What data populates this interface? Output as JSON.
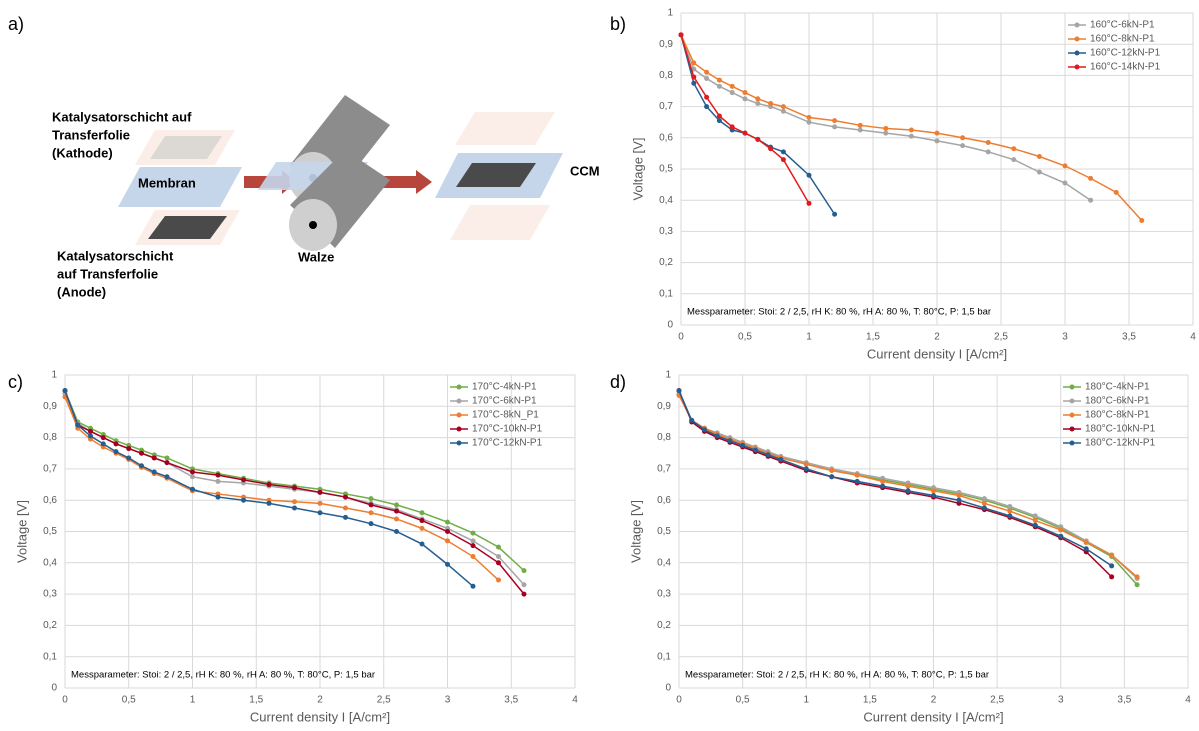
{
  "diagram": {
    "panel_label": "a)",
    "cathode_label": [
      "Katalysatorschicht auf",
      "Transferfolie",
      "(Kathode)"
    ],
    "membrane_label": "Membran",
    "roller_label": "Walze",
    "ccm_label": "CCM",
    "anode_label": [
      "Katalysatorschicht",
      "auf Transferfolie",
      "(Anode)"
    ]
  },
  "chart_data": [
    {
      "type": "line",
      "panel_label": "b)",
      "x_label": "Current density I  [A/cm²]",
      "y_label": "Voltage [V]",
      "annotation": "Messparameter: Stoi: 2 / 2,5, rH K: 80 %, rH A: 80 %, T: 80°C, P: 1,5 bar",
      "xlim": [
        0,
        4
      ],
      "ylim": [
        0,
        1
      ],
      "grid": true,
      "legend": "top-right",
      "xticks": [
        0,
        {
          "value": 0.5,
          "label": "0,5"
        },
        1,
        {
          "value": 1.5,
          "label": "1,5"
        },
        2,
        {
          "value": 2.5,
          "label": "2,5"
        },
        3,
        {
          "value": 3.5,
          "label": "3,5"
        },
        4
      ],
      "yticks": [
        0,
        {
          "value": 0.1,
          "label": "0,1"
        },
        {
          "value": 0.2,
          "label": "0,2"
        },
        {
          "value": 0.3,
          "label": "0,3"
        },
        {
          "value": 0.4,
          "label": "0,4"
        },
        {
          "value": 0.5,
          "label": "0,5"
        },
        {
          "value": 0.6,
          "label": "0,6"
        },
        {
          "value": 0.7,
          "label": "0,7"
        },
        {
          "value": 0.8,
          "label": "0,8"
        },
        {
          "value": 0.9,
          "label": "0,9"
        },
        1
      ],
      "series": [
        {
          "name": "160°C-6kN-P1",
          "color": "#a5a5a5",
          "x": [
            0,
            0.1,
            0.2,
            0.3,
            0.4,
            0.5,
            0.6,
            0.7,
            0.8,
            1.0,
            1.2,
            1.4,
            1.6,
            1.8,
            2.0,
            2.2,
            2.4,
            2.6,
            2.8,
            3.0,
            3.2
          ],
          "values": [
            0.93,
            0.82,
            0.79,
            0.765,
            0.745,
            0.725,
            0.71,
            0.7,
            0.685,
            0.65,
            0.635,
            0.625,
            0.615,
            0.605,
            0.59,
            0.575,
            0.555,
            0.53,
            0.49,
            0.455,
            0.4
          ]
        },
        {
          "name": "160°C-8kN-P1",
          "color": "#ed7d31",
          "x": [
            0,
            0.1,
            0.2,
            0.3,
            0.4,
            0.5,
            0.6,
            0.7,
            0.8,
            1.0,
            1.2,
            1.4,
            1.6,
            1.8,
            2.0,
            2.2,
            2.4,
            2.6,
            2.8,
            3.0,
            3.2,
            3.4,
            3.6
          ],
          "values": [
            0.93,
            0.84,
            0.81,
            0.785,
            0.765,
            0.745,
            0.725,
            0.71,
            0.7,
            0.665,
            0.655,
            0.64,
            0.63,
            0.625,
            0.615,
            0.6,
            0.585,
            0.565,
            0.54,
            0.51,
            0.47,
            0.425,
            0.335
          ]
        },
        {
          "name": "160°C-12kN-P1",
          "color": "#255e91",
          "x": [
            0,
            0.1,
            0.2,
            0.3,
            0.4,
            0.5,
            0.6,
            0.7,
            0.8,
            1.0,
            1.2
          ],
          "values": [
            0.93,
            0.775,
            0.7,
            0.655,
            0.625,
            0.615,
            0.595,
            0.57,
            0.555,
            0.48,
            0.355
          ]
        },
        {
          "name": "160°C-14kN-P1",
          "color": "#e31a1c",
          "x": [
            0,
            0.1,
            0.2,
            0.3,
            0.4,
            0.5,
            0.6,
            0.7,
            0.8,
            1.0
          ],
          "values": [
            0.93,
            0.795,
            0.73,
            0.67,
            0.635,
            0.615,
            0.595,
            0.565,
            0.53,
            0.39
          ]
        }
      ]
    },
    {
      "type": "line",
      "panel_label": "c)",
      "x_label": "Current density I  [A/cm²]",
      "y_label": "Voltage [V]",
      "annotation": "Messparameter: Stoi: 2 / 2,5, rH K: 80 %, rH A: 80 %, T: 80°C, P: 1,5 bar",
      "xlim": [
        0,
        4
      ],
      "ylim": [
        0,
        1
      ],
      "grid": true,
      "legend": "top-right",
      "xticks": [
        0,
        {
          "value": 0.5,
          "label": "0,5"
        },
        1,
        {
          "value": 1.5,
          "label": "1,5"
        },
        2,
        {
          "value": 2.5,
          "label": "2,5"
        },
        3,
        {
          "value": 3.5,
          "label": "3,5"
        },
        4
      ],
      "yticks": [
        0,
        {
          "value": 0.1,
          "label": "0,1"
        },
        {
          "value": 0.2,
          "label": "0,2"
        },
        {
          "value": 0.3,
          "label": "0,3"
        },
        {
          "value": 0.4,
          "label": "0,4"
        },
        {
          "value": 0.5,
          "label": "0,5"
        },
        {
          "value": 0.6,
          "label": "0,6"
        },
        {
          "value": 0.7,
          "label": "0,7"
        },
        {
          "value": 0.8,
          "label": "0,8"
        },
        {
          "value": 0.9,
          "label": "0,9"
        },
        1
      ],
      "series": [
        {
          "name": "170°C-4kN-P1",
          "color": "#70ad47",
          "x": [
            0,
            0.1,
            0.2,
            0.3,
            0.4,
            0.5,
            0.6,
            0.7,
            0.8,
            1.0,
            1.2,
            1.4,
            1.6,
            1.8,
            2.0,
            2.2,
            2.4,
            2.6,
            2.8,
            3.0,
            3.2,
            3.4,
            3.6
          ],
          "values": [
            0.95,
            0.85,
            0.83,
            0.81,
            0.79,
            0.775,
            0.76,
            0.745,
            0.735,
            0.7,
            0.685,
            0.67,
            0.655,
            0.645,
            0.635,
            0.62,
            0.605,
            0.585,
            0.56,
            0.53,
            0.495,
            0.45,
            0.375
          ]
        },
        {
          "name": "170°C-6kN-P1",
          "color": "#a5a5a5",
          "x": [
            0,
            0.1,
            0.2,
            0.3,
            0.4,
            0.5,
            0.6,
            0.7,
            0.8,
            1.0,
            1.2,
            1.4,
            1.6,
            1.8,
            2.0,
            2.2,
            2.4,
            2.6,
            2.8,
            3.0,
            3.2,
            3.4,
            3.6
          ],
          "values": [
            0.94,
            0.845,
            0.82,
            0.8,
            0.78,
            0.765,
            0.75,
            0.735,
            0.72,
            0.675,
            0.66,
            0.655,
            0.645,
            0.635,
            0.625,
            0.61,
            0.59,
            0.57,
            0.54,
            0.51,
            0.47,
            0.42,
            0.33
          ]
        },
        {
          "name": "170°C-8kN_P1",
          "color": "#ed7d31",
          "x": [
            0,
            0.1,
            0.2,
            0.3,
            0.4,
            0.5,
            0.6,
            0.7,
            0.8,
            1.0,
            1.2,
            1.4,
            1.6,
            1.8,
            2.0,
            2.2,
            2.4,
            2.6,
            2.8,
            3.0,
            3.2,
            3.4
          ],
          "values": [
            0.93,
            0.83,
            0.795,
            0.77,
            0.75,
            0.73,
            0.705,
            0.685,
            0.67,
            0.63,
            0.62,
            0.61,
            0.6,
            0.595,
            0.59,
            0.575,
            0.56,
            0.54,
            0.51,
            0.47,
            0.42,
            0.345
          ]
        },
        {
          "name": "170°C-10kN-P1",
          "color": "#a50021",
          "x": [
            0,
            0.1,
            0.2,
            0.3,
            0.4,
            0.5,
            0.6,
            0.7,
            0.8,
            1.0,
            1.2,
            1.4,
            1.6,
            1.8,
            2.0,
            2.2,
            2.4,
            2.6,
            2.8,
            3.0,
            3.2,
            3.4,
            3.6
          ],
          "values": [
            0.95,
            0.84,
            0.82,
            0.8,
            0.78,
            0.765,
            0.75,
            0.735,
            0.72,
            0.69,
            0.68,
            0.665,
            0.65,
            0.64,
            0.625,
            0.61,
            0.585,
            0.565,
            0.535,
            0.5,
            0.455,
            0.4,
            0.3
          ]
        },
        {
          "name": "170°C-12kN-P1",
          "color": "#255e91",
          "x": [
            0,
            0.1,
            0.2,
            0.3,
            0.4,
            0.5,
            0.6,
            0.7,
            0.8,
            1.0,
            1.2,
            1.4,
            1.6,
            1.8,
            2.0,
            2.2,
            2.4,
            2.6,
            2.8,
            3.0,
            3.2
          ],
          "values": [
            0.95,
            0.84,
            0.805,
            0.78,
            0.755,
            0.735,
            0.71,
            0.69,
            0.675,
            0.635,
            0.61,
            0.6,
            0.59,
            0.575,
            0.56,
            0.545,
            0.525,
            0.5,
            0.46,
            0.395,
            0.325
          ]
        }
      ]
    },
    {
      "type": "line",
      "panel_label": "d)",
      "x_label": "Current density I  [A/cm²]",
      "y_label": "Voltage [V]",
      "annotation": "Messparameter: Stoi: 2 / 2,5, rH K: 80 %, rH A: 80 %, T: 80°C, P: 1,5 bar",
      "xlim": [
        0,
        4
      ],
      "ylim": [
        0,
        1
      ],
      "grid": true,
      "legend": "top-right",
      "xticks": [
        0,
        {
          "value": 0.5,
          "label": "0,5"
        },
        1,
        {
          "value": 1.5,
          "label": "1,5"
        },
        2,
        {
          "value": 2.5,
          "label": "2,5"
        },
        3,
        {
          "value": 3.5,
          "label": "3,5"
        },
        4
      ],
      "yticks": [
        0,
        {
          "value": 0.1,
          "label": "0,1"
        },
        {
          "value": 0.2,
          "label": "0,2"
        },
        {
          "value": 0.3,
          "label": "0,3"
        },
        {
          "value": 0.4,
          "label": "0,4"
        },
        {
          "value": 0.5,
          "label": "0,5"
        },
        {
          "value": 0.6,
          "label": "0,6"
        },
        {
          "value": 0.7,
          "label": "0,7"
        },
        {
          "value": 0.8,
          "label": "0,8"
        },
        {
          "value": 0.9,
          "label": "0,9"
        },
        1
      ],
      "series": [
        {
          "name": "180°C-4kN-P1",
          "color": "#70ad47",
          "x": [
            0,
            0.1,
            0.2,
            0.3,
            0.4,
            0.5,
            0.6,
            0.7,
            0.8,
            1.0,
            1.2,
            1.4,
            1.6,
            1.8,
            2.0,
            2.2,
            2.4,
            2.6,
            2.8,
            3.0,
            3.2,
            3.4,
            3.6
          ],
          "values": [
            0.94,
            0.855,
            0.83,
            0.81,
            0.795,
            0.78,
            0.765,
            0.75,
            0.735,
            0.715,
            0.695,
            0.68,
            0.665,
            0.65,
            0.635,
            0.62,
            0.6,
            0.575,
            0.545,
            0.51,
            0.465,
            0.42,
            0.33
          ]
        },
        {
          "name": "180°C-6kN-P1",
          "color": "#a5a5a5",
          "x": [
            0,
            0.1,
            0.2,
            0.3,
            0.4,
            0.5,
            0.6,
            0.7,
            0.8,
            1.0,
            1.2,
            1.4,
            1.6,
            1.8,
            2.0,
            2.2,
            2.4,
            2.6,
            2.8,
            3.0,
            3.2,
            3.4,
            3.6
          ],
          "values": [
            0.94,
            0.855,
            0.83,
            0.815,
            0.8,
            0.785,
            0.77,
            0.755,
            0.74,
            0.72,
            0.7,
            0.685,
            0.67,
            0.655,
            0.64,
            0.625,
            0.605,
            0.58,
            0.55,
            0.515,
            0.47,
            0.425,
            0.35
          ]
        },
        {
          "name": "180°C-8kN-P1",
          "color": "#ed7d31",
          "x": [
            0,
            0.1,
            0.2,
            0.3,
            0.4,
            0.5,
            0.6,
            0.7,
            0.8,
            1.0,
            1.2,
            1.4,
            1.6,
            1.8,
            2.0,
            2.2,
            2.4,
            2.6,
            2.8,
            3.0,
            3.2,
            3.4,
            3.6
          ],
          "values": [
            0.935,
            0.855,
            0.83,
            0.81,
            0.795,
            0.78,
            0.765,
            0.75,
            0.735,
            0.715,
            0.695,
            0.68,
            0.66,
            0.645,
            0.63,
            0.615,
            0.59,
            0.565,
            0.535,
            0.505,
            0.465,
            0.425,
            0.355
          ]
        },
        {
          "name": "180°C-10kN-P1",
          "color": "#a50021",
          "x": [
            0,
            0.1,
            0.2,
            0.3,
            0.4,
            0.5,
            0.6,
            0.7,
            0.8,
            1.0,
            1.2,
            1.4,
            1.6,
            1.8,
            2.0,
            2.2,
            2.4,
            2.6,
            2.8,
            3.0,
            3.2,
            3.4
          ],
          "values": [
            0.95,
            0.85,
            0.82,
            0.8,
            0.785,
            0.77,
            0.755,
            0.74,
            0.725,
            0.695,
            0.675,
            0.655,
            0.64,
            0.625,
            0.61,
            0.59,
            0.57,
            0.545,
            0.515,
            0.48,
            0.435,
            0.355
          ]
        },
        {
          "name": "180°C-12kN-P1",
          "color": "#255e91",
          "x": [
            0,
            0.1,
            0.2,
            0.3,
            0.4,
            0.5,
            0.6,
            0.7,
            0.8,
            1.0,
            1.2,
            1.4,
            1.6,
            1.8,
            2.0,
            2.2,
            2.4,
            2.6,
            2.8,
            3.0,
            3.2,
            3.4
          ],
          "values": [
            0.95,
            0.855,
            0.825,
            0.805,
            0.79,
            0.775,
            0.76,
            0.745,
            0.73,
            0.7,
            0.675,
            0.66,
            0.645,
            0.63,
            0.615,
            0.6,
            0.575,
            0.55,
            0.52,
            0.485,
            0.445,
            0.39
          ]
        }
      ]
    }
  ]
}
